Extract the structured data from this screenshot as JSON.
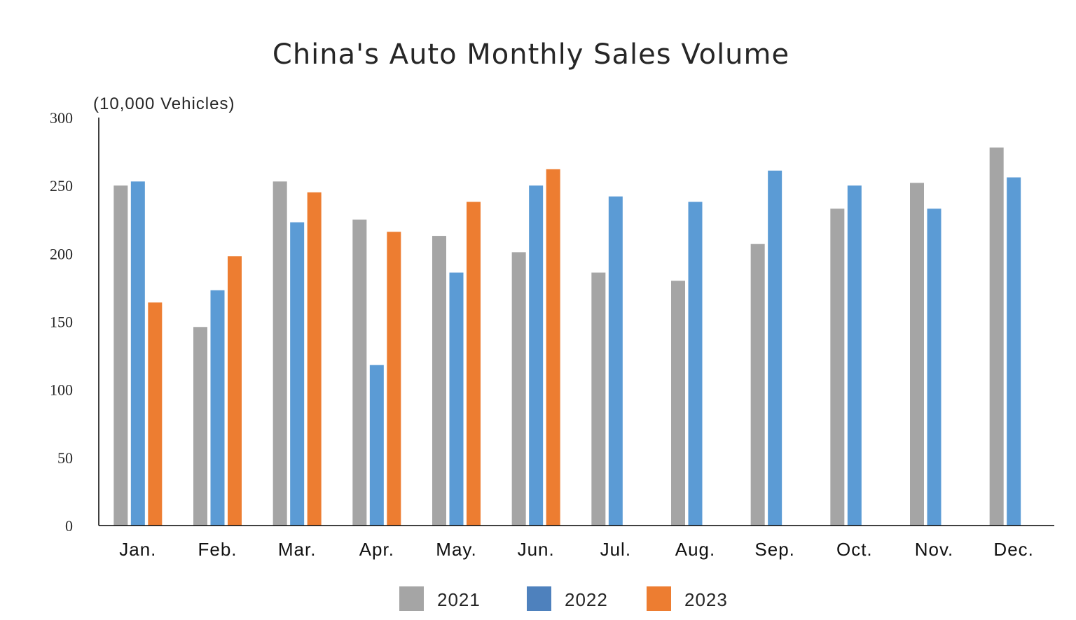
{
  "chart_data": {
    "type": "bar",
    "title": "China's Auto Monthly Sales Volume",
    "ylabel": "(10,000 Vehicles)",
    "xlabel": "",
    "ylim": [
      0,
      300
    ],
    "yticks": [
      "0",
      "50",
      "100",
      "150",
      "200",
      "250",
      "300"
    ],
    "grid": false,
    "legend_position": "bottom",
    "categories": [
      "Jan.",
      "Feb.",
      "Mar.",
      "Apr.",
      "May.",
      "Jun.",
      "Jul.",
      "Aug.",
      "Sep.",
      "Oct.",
      "Nov.",
      "Dec."
    ],
    "series": [
      {
        "name": "2021",
        "color": "#a5a5a5",
        "legend_color": "#a5a5a5",
        "values": [
          250,
          146,
          253,
          225,
          213,
          201,
          186,
          180,
          207,
          233,
          252,
          278
        ]
      },
      {
        "name": "2022",
        "color": "#5b9bd5",
        "legend_color": "#4e81bd",
        "values": [
          253,
          173,
          223,
          118,
          186,
          250,
          242,
          238,
          261,
          250,
          233,
          256
        ]
      },
      {
        "name": "2023",
        "color": "#ed7d31",
        "legend_color": "#ed7d31",
        "values": [
          164,
          198,
          245,
          216,
          238,
          262,
          null,
          null,
          null,
          null,
          null,
          null
        ]
      }
    ]
  }
}
